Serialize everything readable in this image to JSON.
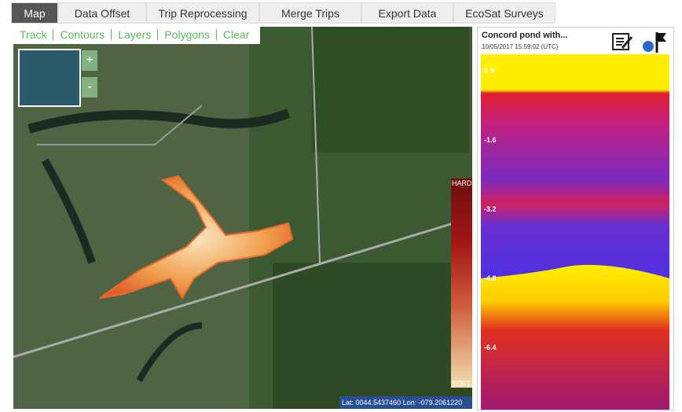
{
  "tabs": [
    "Map",
    "Data Offset",
    "Trip Reprocessing",
    "Merge Trips",
    "Export Data",
    "EcoSat Surveys"
  ],
  "map": {
    "toolbar": [
      "Track",
      "Contours",
      "Layers",
      "Polygons",
      "Clear"
    ],
    "zoom_in": "+",
    "zoom_out": "-",
    "legend": {
      "top": "HARD",
      "bottom": "SOFT"
    },
    "coordinates": "Lat: 0044.5437460  Lon: -079.2061220"
  },
  "sonar": {
    "title": "Concord pond with...",
    "timestamp": "10/05/2017 15:59:02 (UTC)",
    "depth_labels": [
      "0 ft",
      "-1.6",
      "-3.2",
      "-4.8",
      "-6.4"
    ]
  }
}
